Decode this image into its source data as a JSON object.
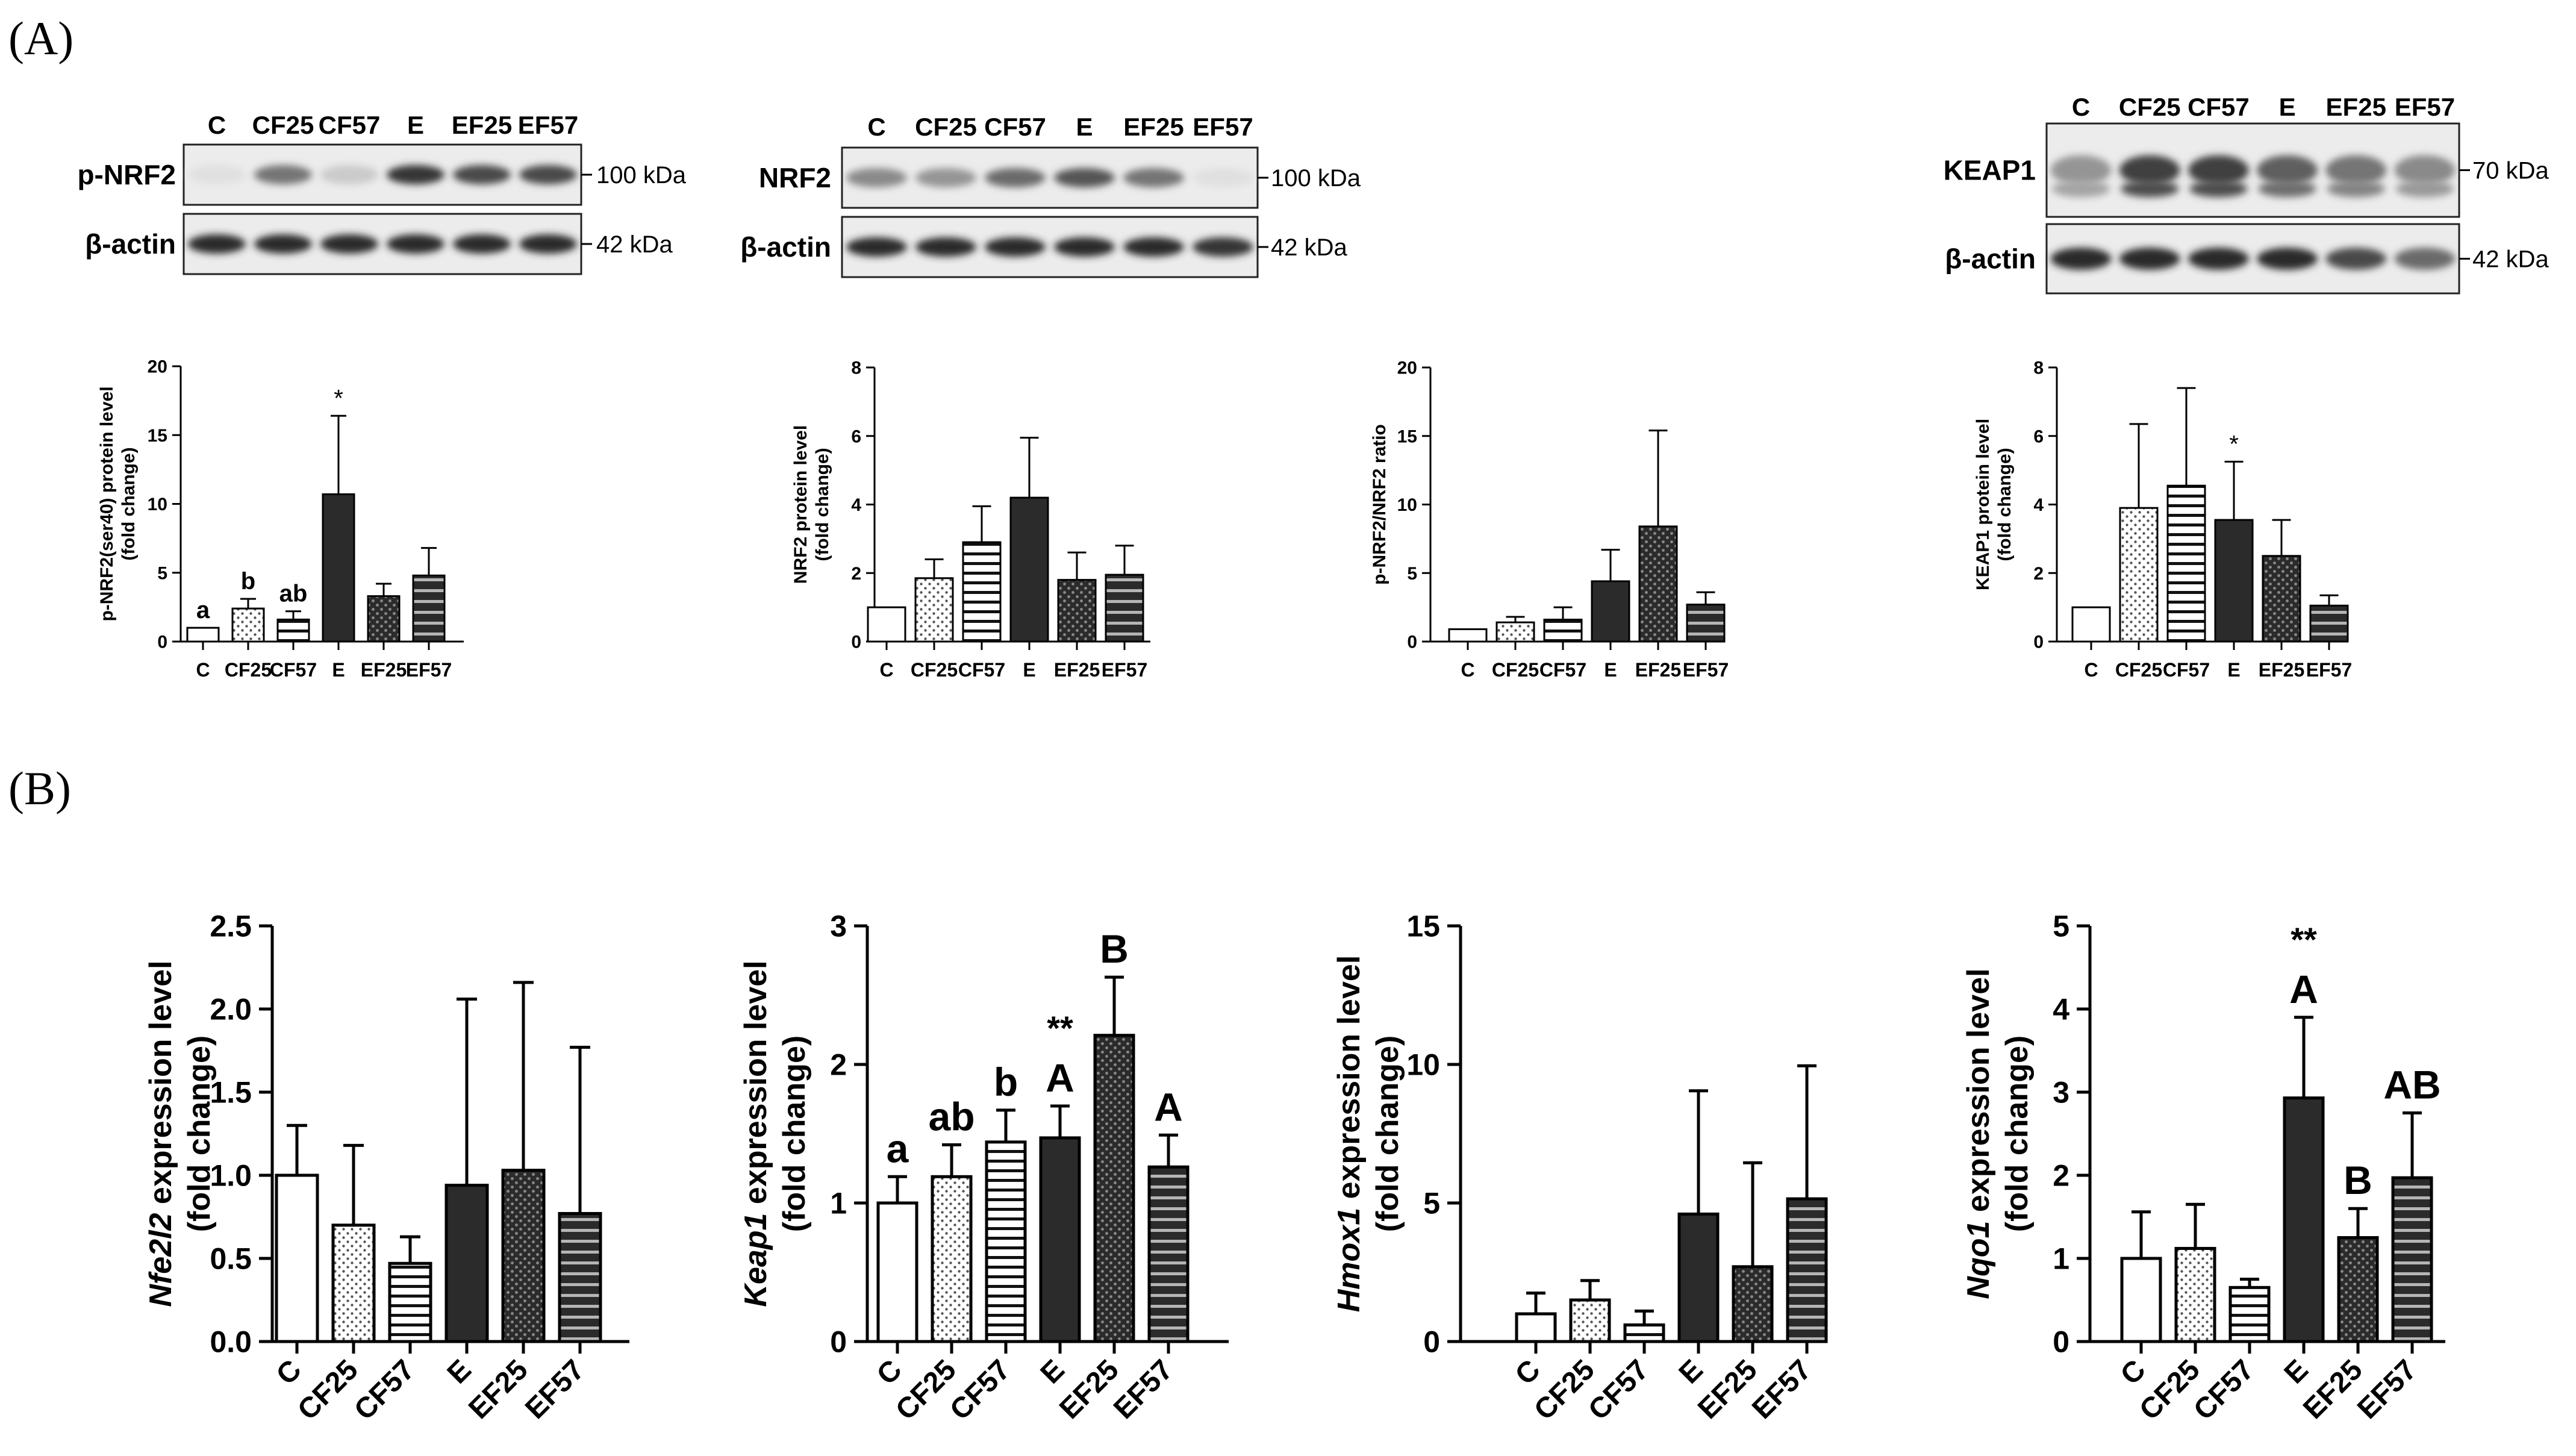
{
  "panel_labels": {
    "a": "(A)",
    "b": "(B)"
  },
  "blots": [
    {
      "lanes": [
        "C",
        "CF25",
        "CF57",
        "E",
        "EF25",
        "EF57"
      ],
      "rows": [
        {
          "protein": "p-NRF2",
          "kda": "100 kDa",
          "intensities": [
            0.05,
            0.55,
            0.15,
            0.85,
            0.75,
            0.75
          ]
        },
        {
          "protein": "β-actin",
          "kda": "42 kDa",
          "intensities": [
            0.9,
            0.9,
            0.9,
            0.9,
            0.9,
            0.9
          ]
        }
      ]
    },
    {
      "lanes": [
        "C",
        "CF25",
        "CF57",
        "E",
        "EF25",
        "EF57"
      ],
      "rows": [
        {
          "protein": "NRF2",
          "kda": "100 kDa",
          "intensities": [
            0.45,
            0.4,
            0.6,
            0.7,
            0.55,
            0.05
          ]
        },
        {
          "protein": "β-actin",
          "kda": "42 kDa",
          "intensities": [
            0.9,
            0.9,
            0.9,
            0.9,
            0.9,
            0.85
          ]
        }
      ]
    },
    {
      "lanes": [
        "C",
        "CF25",
        "CF57",
        "E",
        "EF25",
        "EF57"
      ],
      "rows": [
        {
          "protein": "KEAP1",
          "kda": "70 kDa",
          "intensities": [
            0.4,
            0.8,
            0.8,
            0.65,
            0.55,
            0.45
          ]
        },
        {
          "protein": "β-actin",
          "kda": "42 kDa",
          "intensities": [
            0.9,
            0.9,
            0.9,
            0.9,
            0.75,
            0.6
          ]
        }
      ]
    }
  ],
  "chart_data": [
    {
      "type": "bar",
      "panel": "A",
      "categories": [
        "C",
        "CF25",
        "CF57",
        "E",
        "EF25",
        "EF57"
      ],
      "values": [
        1.0,
        2.4,
        1.6,
        10.7,
        3.3,
        4.8
      ],
      "errors": [
        0.0,
        0.7,
        0.6,
        5.7,
        0.9,
        2.0
      ],
      "ylabel_lines": [
        "p-NRF2(ser40) protein level",
        "(fold change)"
      ],
      "ylim": [
        0,
        20
      ],
      "yticks": [
        "0",
        "5",
        "10",
        "15",
        "20"
      ],
      "annotations": [
        "a",
        "b",
        "ab",
        "*",
        "",
        ""
      ]
    },
    {
      "type": "bar",
      "panel": "A",
      "categories": [
        "C",
        "CF25",
        "CF57",
        "E",
        "EF25",
        "EF57"
      ],
      "values": [
        1.0,
        1.85,
        2.9,
        4.2,
        1.8,
        1.95
      ],
      "errors": [
        0.0,
        0.55,
        1.05,
        1.75,
        0.8,
        0.85
      ],
      "ylabel_lines": [
        "NRF2 protein level",
        "(fold change)"
      ],
      "ylim": [
        0,
        8
      ],
      "yticks": [
        "0",
        "2",
        "4",
        "6",
        "8"
      ],
      "annotations": [
        "",
        "",
        "",
        "",
        "",
        ""
      ]
    },
    {
      "type": "bar",
      "panel": "A",
      "categories": [
        "C",
        "CF25",
        "CF57",
        "E",
        "EF25",
        "EF57"
      ],
      "values": [
        0.9,
        1.4,
        1.6,
        4.4,
        8.4,
        2.7
      ],
      "errors": [
        0.0,
        0.4,
        0.9,
        2.3,
        7.0,
        0.9
      ],
      "ylabel_lines": [
        "p-NRF2/NRF2 ratio"
      ],
      "ylim": [
        0,
        20
      ],
      "yticks": [
        "0",
        "5",
        "10",
        "15",
        "20"
      ],
      "annotations": [
        "",
        "",
        "",
        "",
        "",
        ""
      ]
    },
    {
      "type": "bar",
      "panel": "A",
      "categories": [
        "C",
        "CF25",
        "CF57",
        "E",
        "EF25",
        "EF57"
      ],
      "values": [
        1.0,
        3.9,
        4.55,
        3.55,
        2.5,
        1.05
      ],
      "errors": [
        0.0,
        2.45,
        2.85,
        1.7,
        1.05,
        0.3
      ],
      "ylabel_lines": [
        "KEAP1 protein level",
        "(fold change)"
      ],
      "ylim": [
        0,
        8
      ],
      "yticks": [
        "0",
        "2",
        "4",
        "6",
        "8"
      ],
      "annotations": [
        "",
        "",
        "",
        "*",
        "",
        ""
      ]
    },
    {
      "type": "bar",
      "panel": "B",
      "categories": [
        "C",
        "CF25",
        "CF57",
        "E",
        "EF25",
        "EF57"
      ],
      "values": [
        1.0,
        0.7,
        0.47,
        0.94,
        1.03,
        0.77
      ],
      "errors": [
        0.3,
        0.48,
        0.16,
        1.12,
        1.13,
        1.0
      ],
      "ylabel_gene": "Nfe2l2",
      "ylabel_rest": " expression level",
      "ylabel_line2": "(fold change)",
      "ylim": [
        0,
        2.5
      ],
      "yticks": [
        "0.0",
        "0.5",
        "1.0",
        "1.5",
        "2.0",
        "2.5"
      ],
      "annotations": [
        "",
        "",
        "",
        "",
        "",
        ""
      ]
    },
    {
      "type": "bar",
      "panel": "B",
      "categories": [
        "C",
        "CF25",
        "CF57",
        "E",
        "EF25",
        "EF57"
      ],
      "values": [
        1.0,
        1.19,
        1.44,
        1.47,
        2.21,
        1.26
      ],
      "errors": [
        0.19,
        0.23,
        0.23,
        0.23,
        0.42,
        0.23
      ],
      "ylabel_gene": "Keap1",
      "ylabel_rest": " expression level",
      "ylabel_line2": "(fold change)",
      "ylim": [
        0,
        3
      ],
      "yticks": [
        "0",
        "1",
        "2",
        "3"
      ],
      "annotations": [
        "a",
        "ab",
        "b",
        "A",
        "B",
        "A"
      ],
      "stars": [
        "",
        "",
        "",
        "**",
        "",
        ""
      ]
    },
    {
      "type": "bar",
      "panel": "B",
      "categories": [
        "C",
        "CF25",
        "CF57",
        "E",
        "EF25",
        "EF57"
      ],
      "values": [
        1.0,
        1.5,
        0.6,
        4.6,
        2.7,
        5.15
      ],
      "errors": [
        0.75,
        0.7,
        0.5,
        4.45,
        3.75,
        4.8
      ],
      "ylabel_gene": "Hmox1",
      "ylabel_rest": " expression level",
      "ylabel_line2": "(fold change)",
      "ylim": [
        0,
        15
      ],
      "yticks": [
        "0",
        "5",
        "10",
        "15"
      ],
      "annotations": [
        "",
        "",
        "",
        "",
        "",
        ""
      ]
    },
    {
      "type": "bar",
      "panel": "B",
      "categories": [
        "C",
        "CF25",
        "CF57",
        "E",
        "EF25",
        "EF57"
      ],
      "values": [
        1.0,
        1.12,
        0.65,
        2.93,
        1.25,
        1.97
      ],
      "errors": [
        0.56,
        0.53,
        0.1,
        0.97,
        0.35,
        0.78
      ],
      "ylabel_gene": "Nqo1",
      "ylabel_rest": " expression level",
      "ylabel_line2": "(fold change)",
      "ylim": [
        0,
        5
      ],
      "yticks": [
        "0",
        "1",
        "2",
        "3",
        "4",
        "5"
      ],
      "annotations": [
        "",
        "",
        "",
        "A",
        "B",
        "AB"
      ],
      "stars": [
        "",
        "",
        "",
        "**",
        "",
        ""
      ]
    }
  ]
}
